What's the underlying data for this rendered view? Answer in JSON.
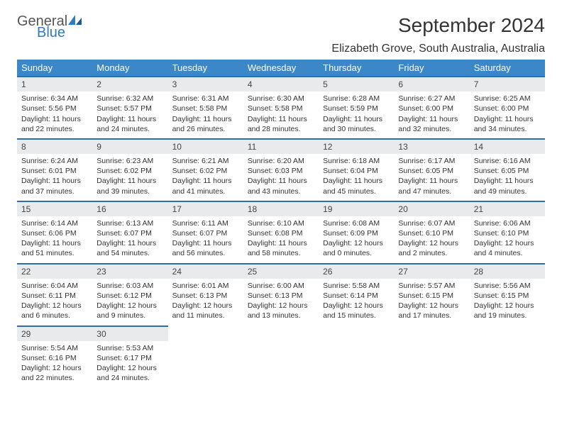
{
  "brand": {
    "name_part1": "General",
    "name_part2": "Blue"
  },
  "title": "September 2024",
  "location": "Elizabeth Grove, South Australia, Australia",
  "colors": {
    "header_bg": "#3b87c8",
    "daynum_bg": "#e8eaec",
    "daynum_border": "#2f6ea6",
    "brand_blue": "#2f7bbf"
  },
  "weekdays": [
    "Sunday",
    "Monday",
    "Tuesday",
    "Wednesday",
    "Thursday",
    "Friday",
    "Saturday"
  ],
  "days": [
    {
      "n": "1",
      "sunrise": "6:34 AM",
      "sunset": "5:56 PM",
      "daylight": "11 hours and 22 minutes."
    },
    {
      "n": "2",
      "sunrise": "6:32 AM",
      "sunset": "5:57 PM",
      "daylight": "11 hours and 24 minutes."
    },
    {
      "n": "3",
      "sunrise": "6:31 AM",
      "sunset": "5:58 PM",
      "daylight": "11 hours and 26 minutes."
    },
    {
      "n": "4",
      "sunrise": "6:30 AM",
      "sunset": "5:58 PM",
      "daylight": "11 hours and 28 minutes."
    },
    {
      "n": "5",
      "sunrise": "6:28 AM",
      "sunset": "5:59 PM",
      "daylight": "11 hours and 30 minutes."
    },
    {
      "n": "6",
      "sunrise": "6:27 AM",
      "sunset": "6:00 PM",
      "daylight": "11 hours and 32 minutes."
    },
    {
      "n": "7",
      "sunrise": "6:25 AM",
      "sunset": "6:00 PM",
      "daylight": "11 hours and 34 minutes."
    },
    {
      "n": "8",
      "sunrise": "6:24 AM",
      "sunset": "6:01 PM",
      "daylight": "11 hours and 37 minutes."
    },
    {
      "n": "9",
      "sunrise": "6:23 AM",
      "sunset": "6:02 PM",
      "daylight": "11 hours and 39 minutes."
    },
    {
      "n": "10",
      "sunrise": "6:21 AM",
      "sunset": "6:02 PM",
      "daylight": "11 hours and 41 minutes."
    },
    {
      "n": "11",
      "sunrise": "6:20 AM",
      "sunset": "6:03 PM",
      "daylight": "11 hours and 43 minutes."
    },
    {
      "n": "12",
      "sunrise": "6:18 AM",
      "sunset": "6:04 PM",
      "daylight": "11 hours and 45 minutes."
    },
    {
      "n": "13",
      "sunrise": "6:17 AM",
      "sunset": "6:05 PM",
      "daylight": "11 hours and 47 minutes."
    },
    {
      "n": "14",
      "sunrise": "6:16 AM",
      "sunset": "6:05 PM",
      "daylight": "11 hours and 49 minutes."
    },
    {
      "n": "15",
      "sunrise": "6:14 AM",
      "sunset": "6:06 PM",
      "daylight": "11 hours and 51 minutes."
    },
    {
      "n": "16",
      "sunrise": "6:13 AM",
      "sunset": "6:07 PM",
      "daylight": "11 hours and 54 minutes."
    },
    {
      "n": "17",
      "sunrise": "6:11 AM",
      "sunset": "6:07 PM",
      "daylight": "11 hours and 56 minutes."
    },
    {
      "n": "18",
      "sunrise": "6:10 AM",
      "sunset": "6:08 PM",
      "daylight": "11 hours and 58 minutes."
    },
    {
      "n": "19",
      "sunrise": "6:08 AM",
      "sunset": "6:09 PM",
      "daylight": "12 hours and 0 minutes."
    },
    {
      "n": "20",
      "sunrise": "6:07 AM",
      "sunset": "6:10 PM",
      "daylight": "12 hours and 2 minutes."
    },
    {
      "n": "21",
      "sunrise": "6:06 AM",
      "sunset": "6:10 PM",
      "daylight": "12 hours and 4 minutes."
    },
    {
      "n": "22",
      "sunrise": "6:04 AM",
      "sunset": "6:11 PM",
      "daylight": "12 hours and 6 minutes."
    },
    {
      "n": "23",
      "sunrise": "6:03 AM",
      "sunset": "6:12 PM",
      "daylight": "12 hours and 9 minutes."
    },
    {
      "n": "24",
      "sunrise": "6:01 AM",
      "sunset": "6:13 PM",
      "daylight": "12 hours and 11 minutes."
    },
    {
      "n": "25",
      "sunrise": "6:00 AM",
      "sunset": "6:13 PM",
      "daylight": "12 hours and 13 minutes."
    },
    {
      "n": "26",
      "sunrise": "5:58 AM",
      "sunset": "6:14 PM",
      "daylight": "12 hours and 15 minutes."
    },
    {
      "n": "27",
      "sunrise": "5:57 AM",
      "sunset": "6:15 PM",
      "daylight": "12 hours and 17 minutes."
    },
    {
      "n": "28",
      "sunrise": "5:56 AM",
      "sunset": "6:15 PM",
      "daylight": "12 hours and 19 minutes."
    },
    {
      "n": "29",
      "sunrise": "5:54 AM",
      "sunset": "6:16 PM",
      "daylight": "12 hours and 22 minutes."
    },
    {
      "n": "30",
      "sunrise": "5:53 AM",
      "sunset": "6:17 PM",
      "daylight": "12 hours and 24 minutes."
    }
  ],
  "labels": {
    "sunrise": "Sunrise:",
    "sunset": "Sunset:",
    "daylight": "Daylight:"
  }
}
